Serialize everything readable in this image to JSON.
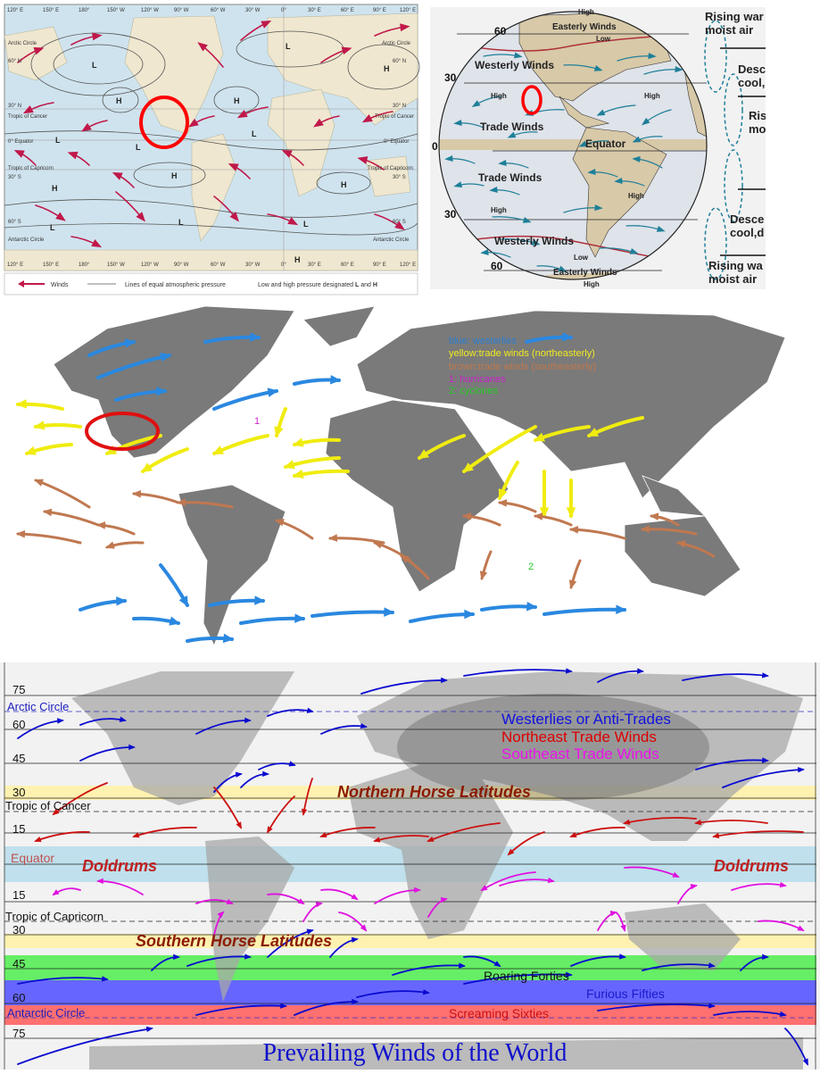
{
  "panel1": {
    "longitudes": [
      "120° E",
      "150° E",
      "180°",
      "150° W",
      "120° W",
      "90° W",
      "60° W",
      "30° W",
      "0°",
      "30° E",
      "60° E",
      "90° E",
      "120° E"
    ],
    "left_labels": [
      "Arctic Circle",
      "60° N",
      "30° N",
      "Tropic of Cancer",
      "0° Equator",
      "Tropic of Capricorn",
      "30° S",
      "60° S",
      "Antarctic Circle"
    ],
    "right_labels": [
      "Arctic Circle",
      "60° N",
      "30° N",
      "Tropic of Cancer",
      "0° Equator",
      "Tropic of Capricorn",
      "30° S",
      "60° S",
      "Antarctic Circle"
    ],
    "pressure_marks": [
      "L",
      "L",
      "H",
      "H",
      "H",
      "L",
      "L",
      "L",
      "H",
      "H",
      "H",
      "L",
      "L",
      "L",
      "H"
    ],
    "legend": {
      "winds": "Winds",
      "isobars": "Lines of equal atmospheric pressure",
      "pressure_text": "Low and high pressure designated",
      "l": "L",
      "and": "and",
      "h": "H"
    },
    "colors": {
      "ocean": "#cfe3ee",
      "land": "#efe7cf",
      "wind": "#c0184a",
      "highlight": "#ff0000"
    }
  },
  "panel2": {
    "lat_labels": [
      "60",
      "30",
      "0",
      "30",
      "60"
    ],
    "labels": {
      "easterly_n": "Easterly Winds",
      "high_n": "High",
      "low_n": "Low",
      "westerly_n": "Westerly Winds",
      "high_nw": "High",
      "high_ne": "High",
      "trade_n": "Trade Winds",
      "equator": "Equator",
      "trade_s": "Trade Winds",
      "high_s_mid": "High",
      "high_sw": "High",
      "westerly_s": "Westerly Winds",
      "low_s": "Low",
      "easterly_s": "Easterly Winds",
      "high_s": "High"
    },
    "side_labels": [
      "Rising war",
      "moist air",
      "Desc",
      "cool,",
      "Risi",
      "mo",
      "Desce",
      "cool,d",
      "Rising wa",
      "moist air"
    ],
    "colors": {
      "arrow": "#1f7f99",
      "land": "#d8c9a8",
      "ocean": "#dfe3ea",
      "boundary": "#b0303a"
    }
  },
  "panel3": {
    "legend": [
      {
        "text": "blue: westerlies",
        "color": "#2a7fd4"
      },
      {
        "text": "yellow:trade winds (northeasterly)",
        "color": "#f2ea20"
      },
      {
        "text": "brown:trade winds (southeasterly)",
        "color": "#c0784a"
      },
      {
        "text": "1: hurricanes",
        "color": "#cc22cc"
      },
      {
        "text": "2: cyclones",
        "color": "#22cc22"
      }
    ],
    "marker_1": "1",
    "marker_2": "2",
    "colors": {
      "land": "#7a7a7a",
      "westerlies": "#2a88e0",
      "ne_trades": "#f0ec10",
      "se_trades": "#c07850"
    }
  },
  "panel4": {
    "title": "Prevailing Winds of the World",
    "legend": [
      {
        "text": "Westerlies or Anti-Trades",
        "color": "#1010e0"
      },
      {
        "text": "Northeast Trade Winds",
        "color": "#dd0000"
      },
      {
        "text": "Southeast Trade Winds",
        "color": "#ee10ee"
      }
    ],
    "lat_labels": {
      "l75n": "75",
      "arctic": "Arctic Circle",
      "l60n": "60",
      "l45n": "45",
      "l30n": "30",
      "cancer": "Tropic of Cancer",
      "l15n": "15",
      "equator": "Equator",
      "l15s": "15",
      "capricorn": "Tropic of Capricorn",
      "l30s": "30",
      "l45s": "45",
      "l60s": "60",
      "antarctic": "Antarctic Circle",
      "l75s": "75"
    },
    "zones": {
      "n_horse": "Northern Horse Latitudes",
      "doldrums_l": "Doldrums",
      "doldrums_r": "Doldrums",
      "s_horse": "Southern Horse Latitudes",
      "roaring": "Roaring Forties",
      "furious": "Furious Fifties",
      "screaming": "Screaming Sixties"
    },
    "colors": {
      "westerly": "#0a0ad0",
      "ne": "#cc1010",
      "se": "#e010e0",
      "horse_band": "#fff2b0",
      "equator_band": "#bfe0ec",
      "forties": "#66ee66",
      "fifties": "#6666ff",
      "sixties": "#ff7070"
    }
  }
}
